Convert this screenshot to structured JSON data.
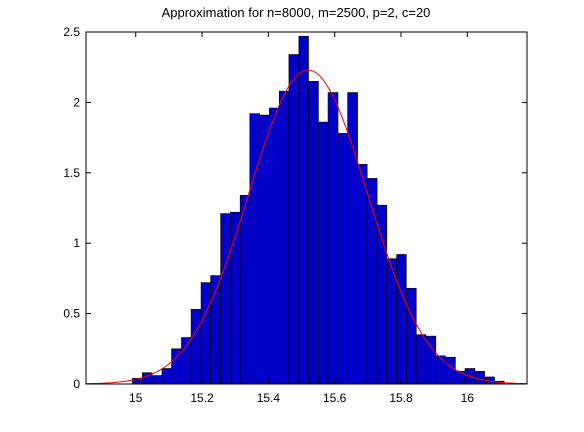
{
  "chart_data": {
    "type": "bar",
    "title": "Approximation for n=8000, m=2500, p=2, c=20",
    "xlabel": "",
    "ylabel": "",
    "xlim": [
      14.85,
      16.18
    ],
    "ylim": [
      0,
      2.5
    ],
    "xticks": [
      15,
      15.2,
      15.4,
      15.6,
      15.8,
      16
    ],
    "xtick_labels": [
      "15",
      "15.2",
      "15.4",
      "15.6",
      "15.8",
      "16"
    ],
    "yticks": [
      0,
      0.5,
      1,
      1.5,
      2,
      2.5
    ],
    "ytick_labels": [
      "0",
      "0.5",
      "1",
      "1.5",
      "2",
      "2.5"
    ],
    "grid": false,
    "legend": "none",
    "bin_width": 0.02954,
    "bins": [
      {
        "x0": 14.99,
        "x1": 15.02,
        "value": 0.04
      },
      {
        "x0": 15.02,
        "x1": 15.049,
        "value": 0.08
      },
      {
        "x0": 15.049,
        "x1": 15.079,
        "value": 0.06
      },
      {
        "x0": 15.079,
        "x1": 15.108,
        "value": 0.11
      },
      {
        "x0": 15.108,
        "x1": 15.138,
        "value": 0.25
      },
      {
        "x0": 15.138,
        "x1": 15.167,
        "value": 0.33
      },
      {
        "x0": 15.167,
        "x1": 15.197,
        "value": 0.53
      },
      {
        "x0": 15.197,
        "x1": 15.226,
        "value": 0.72
      },
      {
        "x0": 15.226,
        "x1": 15.256,
        "value": 0.77
      },
      {
        "x0": 15.256,
        "x1": 15.285,
        "value": 1.21
      },
      {
        "x0": 15.285,
        "x1": 15.315,
        "value": 1.22
      },
      {
        "x0": 15.315,
        "x1": 15.344,
        "value": 1.34
      },
      {
        "x0": 15.344,
        "x1": 15.374,
        "value": 1.92
      },
      {
        "x0": 15.374,
        "x1": 15.403,
        "value": 1.91
      },
      {
        "x0": 15.403,
        "x1": 15.433,
        "value": 1.96
      },
      {
        "x0": 15.433,
        "x1": 15.462,
        "value": 2.08
      },
      {
        "x0": 15.462,
        "x1": 15.492,
        "value": 2.34
      },
      {
        "x0": 15.492,
        "x1": 15.521,
        "value": 2.47
      },
      {
        "x0": 15.521,
        "x1": 15.551,
        "value": 2.15
      },
      {
        "x0": 15.551,
        "x1": 15.58,
        "value": 1.86
      },
      {
        "x0": 15.58,
        "x1": 15.61,
        "value": 2.07
      },
      {
        "x0": 15.61,
        "x1": 15.639,
        "value": 1.78
      },
      {
        "x0": 15.639,
        "x1": 15.669,
        "value": 2.07
      },
      {
        "x0": 15.669,
        "x1": 15.698,
        "value": 1.56
      },
      {
        "x0": 15.698,
        "x1": 15.728,
        "value": 1.46
      },
      {
        "x0": 15.728,
        "x1": 15.757,
        "value": 1.27
      },
      {
        "x0": 15.757,
        "x1": 15.787,
        "value": 0.89
      },
      {
        "x0": 15.787,
        "x1": 15.816,
        "value": 0.92
      },
      {
        "x0": 15.816,
        "x1": 15.846,
        "value": 0.68
      },
      {
        "x0": 15.846,
        "x1": 15.875,
        "value": 0.35
      },
      {
        "x0": 15.875,
        "x1": 15.905,
        "value": 0.34
      },
      {
        "x0": 15.905,
        "x1": 15.934,
        "value": 0.2
      },
      {
        "x0": 15.934,
        "x1": 15.964,
        "value": 0.19
      },
      {
        "x0": 15.964,
        "x1": 15.993,
        "value": 0.09
      },
      {
        "x0": 15.993,
        "x1": 16.023,
        "value": 0.11
      },
      {
        "x0": 16.023,
        "x1": 16.052,
        "value": 0.09
      },
      {
        "x0": 16.052,
        "x1": 16.082,
        "value": 0.05
      },
      {
        "x0": 16.082,
        "x1": 16.111,
        "value": 0.02
      }
    ],
    "curve": {
      "type": "normal-density",
      "mean": 15.52,
      "std": 0.179,
      "peak": 2.23
    },
    "colors": {
      "bar_fill": "#0000c8",
      "bar_edge": "#000000",
      "curve": "#ff0000",
      "axes": "#000000",
      "background": "#ffffff"
    }
  }
}
